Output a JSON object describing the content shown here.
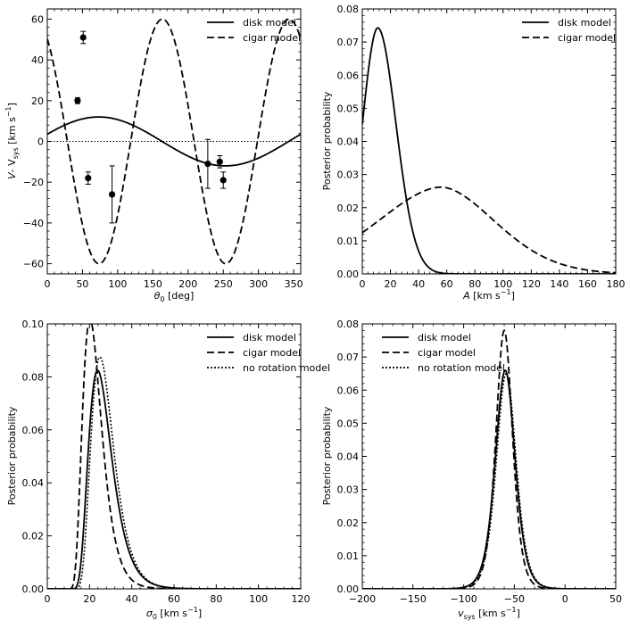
{
  "chart_data": [
    {
      "id": "p1",
      "type": "line",
      "xlabel_main": "θ",
      "xlabel_sub": "0",
      "xlabel_rest": " [deg]",
      "ylabel_main": "V",
      "ylabel_dash": "- V",
      "ylabel_sub": "sys",
      "ylabel_unit": " [km s",
      "ylabel_sup": "−1",
      "ylabel_end": "]",
      "xlim": [
        0,
        360
      ],
      "ylim": [
        -65,
        65
      ],
      "xticks": [
        0,
        50,
        100,
        150,
        200,
        250,
        300,
        350
      ],
      "yticks": [
        -60,
        -40,
        -20,
        0,
        20,
        40,
        60
      ],
      "tick_labels_x": [
        "0",
        "50",
        "100",
        "150",
        "200",
        "250",
        "300",
        "350"
      ],
      "tick_labels_y": [
        "−60",
        "−40",
        "−20",
        "0",
        "20",
        "40",
        "60"
      ],
      "legend": [
        "disk model",
        "cigar model"
      ],
      "series": [
        {
          "name": "disk model",
          "style": "solid",
          "model": "sin",
          "amplitude": 12,
          "phase_deg": 163.5,
          "offset": 0
        },
        {
          "name": "cigar model",
          "style": "dashed",
          "model": "sin2",
          "amplitude": 60,
          "phase_deg": 163.5,
          "offset": 0
        }
      ],
      "zero_line": {
        "y": 0,
        "style": "dotted"
      },
      "points": [
        {
          "x": 43,
          "y": 20,
          "err": 1.5
        },
        {
          "x": 51,
          "y": 51,
          "err": 3
        },
        {
          "x": 58,
          "y": -18,
          "err": 3
        },
        {
          "x": 92,
          "y": -26,
          "err": 14
        },
        {
          "x": 228,
          "y": -11,
          "err": 12
        },
        {
          "x": 245,
          "y": -10,
          "err": 3
        },
        {
          "x": 250,
          "y": -19,
          "err": 4
        }
      ]
    },
    {
      "id": "p2",
      "type": "line",
      "xlabel_main": "A",
      "xlabel_rest": " [km s",
      "xlabel_sup": "−1",
      "xlabel_end": "]",
      "ylabel": "Posterior probability",
      "xlim": [
        0,
        180
      ],
      "ylim": [
        0,
        0.08
      ],
      "xticks": [
        0,
        20,
        40,
        60,
        80,
        100,
        120,
        140,
        160,
        180
      ],
      "yticks": [
        0,
        0.01,
        0.02,
        0.03,
        0.04,
        0.05,
        0.06,
        0.07,
        0.08
      ],
      "tick_labels_x": [
        "0",
        "20",
        "40",
        "60",
        "80",
        "100",
        "120",
        "140",
        "160",
        "180"
      ],
      "tick_labels_y": [
        "0.00",
        "0.01",
        "0.02",
        "0.03",
        "0.04",
        "0.05",
        "0.06",
        "0.07",
        "0.08"
      ],
      "legend": [
        "disk model",
        "cigar model"
      ],
      "series": [
        {
          "name": "disk model",
          "style": "solid",
          "model": "skew",
          "peak": 0.0743,
          "mode": 11,
          "sigma_left": 11,
          "sigma_right": 13,
          "alpha": 0.85
        },
        {
          "name": "cigar model",
          "style": "dashed",
          "model": "skew",
          "peak": 0.0262,
          "mode": 56,
          "sigma_left": 45,
          "sigma_right": 38,
          "alpha": 0.55
        }
      ]
    },
    {
      "id": "p3",
      "type": "line",
      "xlabel_main": "σ",
      "xlabel_sub": "0",
      "xlabel_rest": " [km s",
      "xlabel_sup": "−1",
      "xlabel_end": "]",
      "ylabel": "Posterior probability",
      "xlim": [
        0,
        120
      ],
      "ylim": [
        0,
        0.1
      ],
      "xticks": [
        0,
        20,
        40,
        60,
        80,
        100,
        120
      ],
      "yticks": [
        0,
        0.02,
        0.04,
        0.06,
        0.08,
        0.1
      ],
      "tick_labels_x": [
        "0",
        "20",
        "40",
        "60",
        "80",
        "100",
        "120"
      ],
      "tick_labels_y": [
        "0.00",
        "0.02",
        "0.04",
        "0.06",
        "0.08",
        "0.10"
      ],
      "legend": [
        "disk model",
        "cigar model",
        "no rotation model"
      ],
      "series": [
        {
          "name": "disk model",
          "style": "solid",
          "model": "lognormal",
          "peak": 0.077,
          "mode": 26,
          "s": 0.37,
          "x0": 9
        },
        {
          "name": "cigar model",
          "style": "dashed",
          "model": "lognormal",
          "peak": 0.095,
          "mode": 22,
          "s": 0.37,
          "x0": 8
        },
        {
          "name": "no rotation model",
          "style": "dotted",
          "model": "lognormal",
          "peak": 0.082,
          "mode": 27,
          "s": 0.36,
          "x0": 10
        }
      ]
    },
    {
      "id": "p4",
      "type": "line",
      "xlabel_main": "v",
      "xlabel_sub": "sys",
      "xlabel_rest": " [km s",
      "xlabel_sup": "−1",
      "xlabel_end": "]",
      "ylabel": "Posterior probability",
      "xlim": [
        -200,
        50
      ],
      "ylim": [
        0,
        0.08
      ],
      "xticks": [
        -200,
        -150,
        -100,
        -50,
        0,
        50
      ],
      "yticks": [
        0,
        0.01,
        0.02,
        0.03,
        0.04,
        0.05,
        0.06,
        0.07,
        0.08
      ],
      "tick_labels_x": [
        "−200",
        "−150",
        "−100",
        "−50",
        "0",
        "50"
      ],
      "tick_labels_y": [
        "0.00",
        "0.01",
        "0.02",
        "0.03",
        "0.04",
        "0.05",
        "0.06",
        "0.07",
        "0.08"
      ],
      "legend": [
        "disk model",
        "cigar model",
        "no rotation model"
      ],
      "series": [
        {
          "name": "disk model",
          "style": "solid",
          "model": "sech",
          "peak": 0.066,
          "mode": -59,
          "w": 13
        },
        {
          "name": "cigar model",
          "style": "dashed",
          "model": "sech",
          "peak": 0.078,
          "mode": -60,
          "w": 11
        },
        {
          "name": "no rotation model",
          "style": "dotted",
          "model": "sech",
          "peak": 0.065,
          "mode": -58,
          "w": 13
        }
      ]
    }
  ]
}
